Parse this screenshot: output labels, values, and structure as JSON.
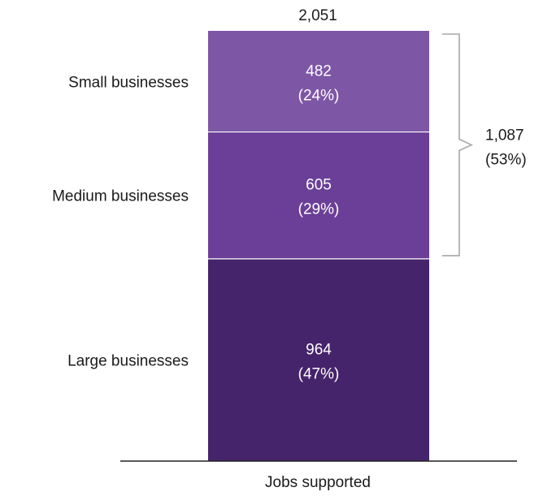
{
  "chart_data": {
    "type": "bar",
    "stacked": true,
    "categories": [
      "Jobs supported"
    ],
    "series": [
      {
        "name": "Large businesses",
        "value": 964,
        "value_label": "964",
        "pct_label": "(47%)",
        "color": "#45246b"
      },
      {
        "name": "Medium businesses",
        "value": 605,
        "value_label": "605",
        "pct_label": "(29%)",
        "color": "#6b3f98"
      },
      {
        "name": "Small businesses",
        "value": 482,
        "value_label": "482",
        "pct_label": "(24%)",
        "color": "#7e56a6"
      }
    ],
    "total_label": "2,051",
    "bracket": {
      "covers": [
        "Small businesses",
        "Medium businesses"
      ],
      "value_label": "1,087",
      "pct_label": "(53%)"
    },
    "xlabel": "Jobs supported",
    "ylim": [
      0,
      2051
    ],
    "colors": {
      "axis": "#222222",
      "bracket": "#a6a6a6",
      "separator": "#ffffff"
    }
  }
}
